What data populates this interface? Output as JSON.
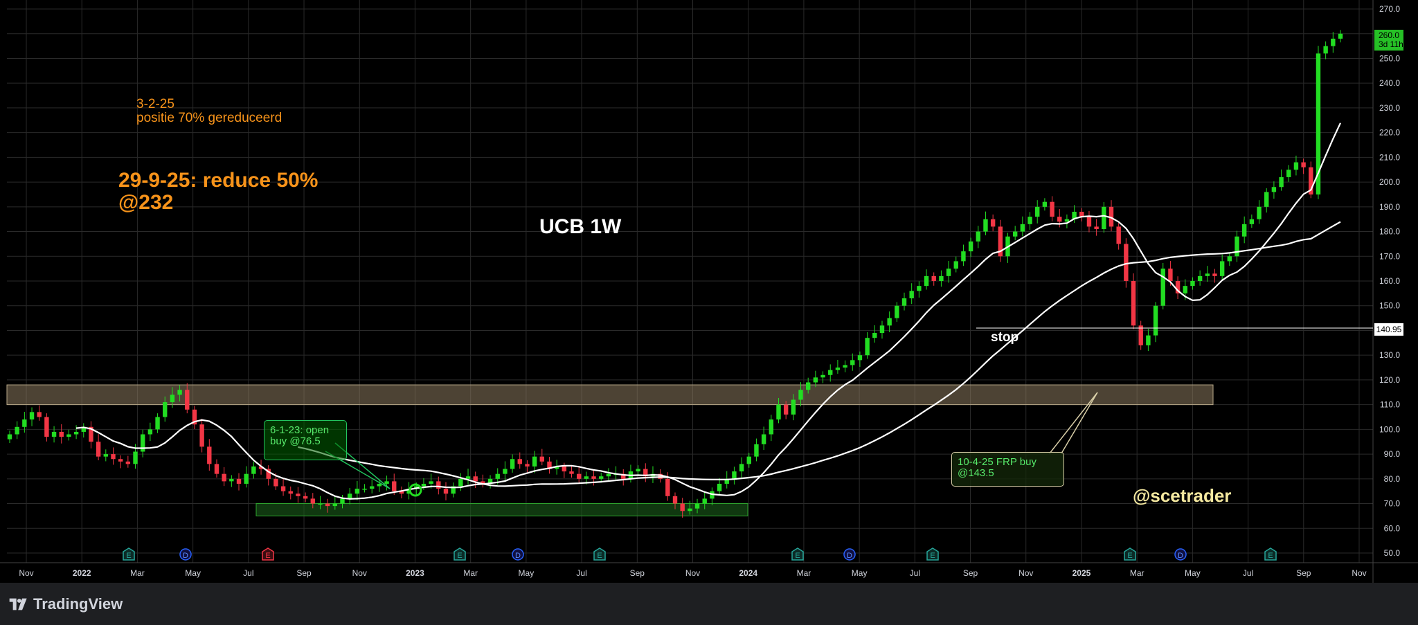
{
  "app": {
    "brand_label": "TradingView"
  },
  "chart_data": {
    "type": "candlestick",
    "title": "UCB 1W",
    "watermark": "@scetrader",
    "y_axis": {
      "min": 45,
      "max": 270,
      "ticks": [
        "50.0",
        "60.0",
        "70.0",
        "80.0",
        "90.0",
        "100.0",
        "110.0",
        "120.0",
        "130.0",
        "140.0",
        "150.0",
        "160.0",
        "170.0",
        "180.0",
        "190.0",
        "200.0",
        "210.0",
        "220.0",
        "230.0",
        "240.0",
        "250.0",
        "260.0",
        "270.0"
      ]
    },
    "x_axis": {
      "labels": [
        "Nov",
        "2022",
        "Mar",
        "May",
        "Jul",
        "Sep",
        "Nov",
        "2023",
        "Mar",
        "May",
        "Jul",
        "Sep",
        "Nov",
        "2024",
        "Mar",
        "May",
        "Jul",
        "Sep",
        "Nov",
        "2025",
        "Mar",
        "May",
        "Jul",
        "Sep",
        "Nov"
      ]
    },
    "last_price": {
      "value": "260.0",
      "countdown": "3d 11h"
    },
    "stop_price": {
      "value": "140.95",
      "label": "stop"
    },
    "colors": {
      "up": "#22dd22",
      "down": "#f23645",
      "ma": "#ffffff",
      "zone": "#8c7a5e",
      "green_zone": "#1a5e1a",
      "background": "#000000",
      "grid": "#2a2a2a"
    },
    "annotations": {
      "note_small_line1": "3-2-25",
      "note_small_line2": "positie 70% gereduceerd",
      "note_big_line1": "29-9-25: reduce 50%",
      "note_big_line2": "@232",
      "callout_buy_line1": "6-1-23: open",
      "callout_buy_line2": "buy @76.5",
      "callout_frp_line1": "10-4-25 FRP buy",
      "callout_frp_line2": "@143.5"
    },
    "event_markers": [
      {
        "kind": "E",
        "label": "E"
      },
      {
        "kind": "D",
        "label": "D"
      },
      {
        "kind": "E-red",
        "label": "E"
      },
      {
        "kind": "E",
        "label": "E"
      },
      {
        "kind": "D",
        "label": "D"
      },
      {
        "kind": "E",
        "label": "E"
      },
      {
        "kind": "E",
        "label": "E"
      },
      {
        "kind": "D",
        "label": "D"
      },
      {
        "kind": "E",
        "label": "E"
      },
      {
        "kind": "E",
        "label": "E"
      },
      {
        "kind": "D",
        "label": "D"
      },
      {
        "kind": "E",
        "label": "E"
      }
    ],
    "resistance_zone": {
      "low": 110,
      "high": 118
    },
    "support_zone": {
      "low": 65,
      "high": 70
    },
    "closes": [
      98,
      101,
      104,
      107,
      105,
      97,
      99,
      97,
      98,
      99,
      101,
      95,
      89,
      90,
      88,
      87,
      86,
      91,
      98,
      100,
      105,
      111,
      114,
      116,
      108,
      102,
      93,
      86,
      82,
      79,
      80,
      78,
      82,
      85,
      84,
      80,
      77,
      75,
      74,
      73,
      72,
      70,
      70,
      69,
      70,
      72,
      74,
      76,
      76,
      77,
      78,
      79,
      75,
      74,
      76,
      77,
      78,
      79,
      76,
      74,
      77,
      80,
      81,
      79,
      78,
      80,
      82,
      84,
      88,
      86,
      85,
      89,
      87,
      84,
      85,
      83,
      82,
      80,
      81,
      80,
      81,
      82,
      82,
      80,
      83,
      84,
      81,
      82,
      80,
      73,
      70,
      67,
      68,
      70,
      72,
      75,
      78,
      80,
      83,
      86,
      89,
      94,
      98,
      104,
      110,
      106,
      112,
      116,
      119,
      121,
      122,
      124,
      125,
      126,
      128,
      130,
      137,
      139,
      142,
      145,
      150,
      153,
      156,
      158,
      162,
      160,
      162,
      165,
      168,
      172,
      176,
      180,
      185,
      182,
      170,
      178,
      180,
      183,
      186,
      190,
      192,
      186,
      184,
      185,
      188,
      186,
      182,
      181,
      190,
      182,
      175,
      160,
      142,
      134,
      138,
      150,
      165,
      160,
      155,
      158,
      160,
      162,
      163,
      162,
      168,
      170,
      178,
      183,
      185,
      190,
      196,
      198,
      202,
      205,
      208,
      206,
      195,
      252,
      255,
      258,
      260
    ],
    "ma_slow": [],
    "ma_fast": []
  }
}
